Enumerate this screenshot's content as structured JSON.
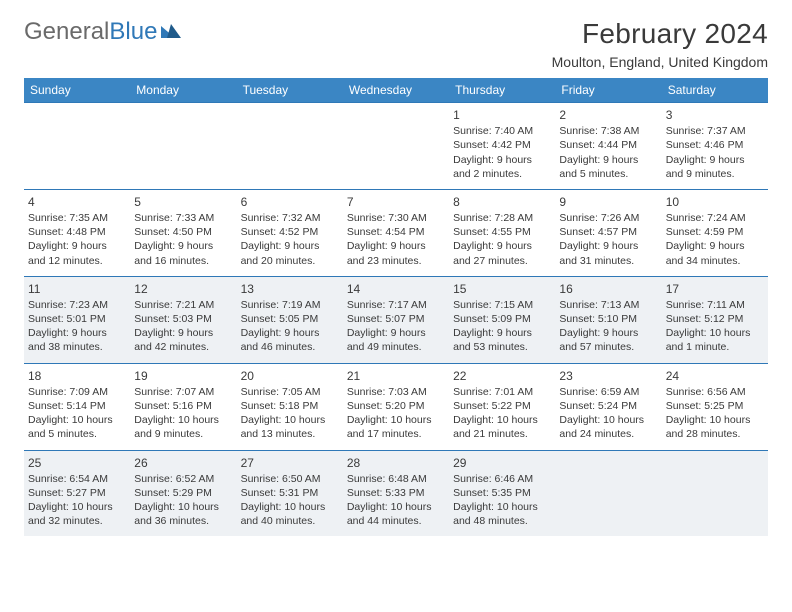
{
  "logo": {
    "part1": "General",
    "part2": "Blue"
  },
  "title": "February 2024",
  "location": "Moulton, England, United Kingdom",
  "colors": {
    "header_bg": "#3b86c4",
    "header_text": "#ffffff",
    "border": "#2f78b7",
    "shaded_row_bg": "#eef1f4",
    "text": "#3a3a3a",
    "logo_gray": "#6a6a6a",
    "logo_blue": "#2f78b7",
    "background": "#ffffff"
  },
  "typography": {
    "title_fontsize": 28,
    "location_fontsize": 14,
    "weekday_fontsize": 12,
    "daynum_fontsize": 12,
    "body_fontsize": 10.5,
    "logo_fontsize": 24
  },
  "weekdays": [
    "Sunday",
    "Monday",
    "Tuesday",
    "Wednesday",
    "Thursday",
    "Friday",
    "Saturday"
  ],
  "weeks": [
    {
      "shaded": false,
      "cells": [
        null,
        null,
        null,
        null,
        {
          "day": "1",
          "sunrise": "Sunrise: 7:40 AM",
          "sunset": "Sunset: 4:42 PM",
          "daylight1": "Daylight: 9 hours",
          "daylight2": "and 2 minutes."
        },
        {
          "day": "2",
          "sunrise": "Sunrise: 7:38 AM",
          "sunset": "Sunset: 4:44 PM",
          "daylight1": "Daylight: 9 hours",
          "daylight2": "and 5 minutes."
        },
        {
          "day": "3",
          "sunrise": "Sunrise: 7:37 AM",
          "sunset": "Sunset: 4:46 PM",
          "daylight1": "Daylight: 9 hours",
          "daylight2": "and 9 minutes."
        }
      ]
    },
    {
      "shaded": false,
      "cells": [
        {
          "day": "4",
          "sunrise": "Sunrise: 7:35 AM",
          "sunset": "Sunset: 4:48 PM",
          "daylight1": "Daylight: 9 hours",
          "daylight2": "and 12 minutes."
        },
        {
          "day": "5",
          "sunrise": "Sunrise: 7:33 AM",
          "sunset": "Sunset: 4:50 PM",
          "daylight1": "Daylight: 9 hours",
          "daylight2": "and 16 minutes."
        },
        {
          "day": "6",
          "sunrise": "Sunrise: 7:32 AM",
          "sunset": "Sunset: 4:52 PM",
          "daylight1": "Daylight: 9 hours",
          "daylight2": "and 20 minutes."
        },
        {
          "day": "7",
          "sunrise": "Sunrise: 7:30 AM",
          "sunset": "Sunset: 4:54 PM",
          "daylight1": "Daylight: 9 hours",
          "daylight2": "and 23 minutes."
        },
        {
          "day": "8",
          "sunrise": "Sunrise: 7:28 AM",
          "sunset": "Sunset: 4:55 PM",
          "daylight1": "Daylight: 9 hours",
          "daylight2": "and 27 minutes."
        },
        {
          "day": "9",
          "sunrise": "Sunrise: 7:26 AM",
          "sunset": "Sunset: 4:57 PM",
          "daylight1": "Daylight: 9 hours",
          "daylight2": "and 31 minutes."
        },
        {
          "day": "10",
          "sunrise": "Sunrise: 7:24 AM",
          "sunset": "Sunset: 4:59 PM",
          "daylight1": "Daylight: 9 hours",
          "daylight2": "and 34 minutes."
        }
      ]
    },
    {
      "shaded": true,
      "cells": [
        {
          "day": "11",
          "sunrise": "Sunrise: 7:23 AM",
          "sunset": "Sunset: 5:01 PM",
          "daylight1": "Daylight: 9 hours",
          "daylight2": "and 38 minutes."
        },
        {
          "day": "12",
          "sunrise": "Sunrise: 7:21 AM",
          "sunset": "Sunset: 5:03 PM",
          "daylight1": "Daylight: 9 hours",
          "daylight2": "and 42 minutes."
        },
        {
          "day": "13",
          "sunrise": "Sunrise: 7:19 AM",
          "sunset": "Sunset: 5:05 PM",
          "daylight1": "Daylight: 9 hours",
          "daylight2": "and 46 minutes."
        },
        {
          "day": "14",
          "sunrise": "Sunrise: 7:17 AM",
          "sunset": "Sunset: 5:07 PM",
          "daylight1": "Daylight: 9 hours",
          "daylight2": "and 49 minutes."
        },
        {
          "day": "15",
          "sunrise": "Sunrise: 7:15 AM",
          "sunset": "Sunset: 5:09 PM",
          "daylight1": "Daylight: 9 hours",
          "daylight2": "and 53 minutes."
        },
        {
          "day": "16",
          "sunrise": "Sunrise: 7:13 AM",
          "sunset": "Sunset: 5:10 PM",
          "daylight1": "Daylight: 9 hours",
          "daylight2": "and 57 minutes."
        },
        {
          "day": "17",
          "sunrise": "Sunrise: 7:11 AM",
          "sunset": "Sunset: 5:12 PM",
          "daylight1": "Daylight: 10 hours",
          "daylight2": "and 1 minute."
        }
      ]
    },
    {
      "shaded": false,
      "cells": [
        {
          "day": "18",
          "sunrise": "Sunrise: 7:09 AM",
          "sunset": "Sunset: 5:14 PM",
          "daylight1": "Daylight: 10 hours",
          "daylight2": "and 5 minutes."
        },
        {
          "day": "19",
          "sunrise": "Sunrise: 7:07 AM",
          "sunset": "Sunset: 5:16 PM",
          "daylight1": "Daylight: 10 hours",
          "daylight2": "and 9 minutes."
        },
        {
          "day": "20",
          "sunrise": "Sunrise: 7:05 AM",
          "sunset": "Sunset: 5:18 PM",
          "daylight1": "Daylight: 10 hours",
          "daylight2": "and 13 minutes."
        },
        {
          "day": "21",
          "sunrise": "Sunrise: 7:03 AM",
          "sunset": "Sunset: 5:20 PM",
          "daylight1": "Daylight: 10 hours",
          "daylight2": "and 17 minutes."
        },
        {
          "day": "22",
          "sunrise": "Sunrise: 7:01 AM",
          "sunset": "Sunset: 5:22 PM",
          "daylight1": "Daylight: 10 hours",
          "daylight2": "and 21 minutes."
        },
        {
          "day": "23",
          "sunrise": "Sunrise: 6:59 AM",
          "sunset": "Sunset: 5:24 PM",
          "daylight1": "Daylight: 10 hours",
          "daylight2": "and 24 minutes."
        },
        {
          "day": "24",
          "sunrise": "Sunrise: 6:56 AM",
          "sunset": "Sunset: 5:25 PM",
          "daylight1": "Daylight: 10 hours",
          "daylight2": "and 28 minutes."
        }
      ]
    },
    {
      "shaded": true,
      "cells": [
        {
          "day": "25",
          "sunrise": "Sunrise: 6:54 AM",
          "sunset": "Sunset: 5:27 PM",
          "daylight1": "Daylight: 10 hours",
          "daylight2": "and 32 minutes."
        },
        {
          "day": "26",
          "sunrise": "Sunrise: 6:52 AM",
          "sunset": "Sunset: 5:29 PM",
          "daylight1": "Daylight: 10 hours",
          "daylight2": "and 36 minutes."
        },
        {
          "day": "27",
          "sunrise": "Sunrise: 6:50 AM",
          "sunset": "Sunset: 5:31 PM",
          "daylight1": "Daylight: 10 hours",
          "daylight2": "and 40 minutes."
        },
        {
          "day": "28",
          "sunrise": "Sunrise: 6:48 AM",
          "sunset": "Sunset: 5:33 PM",
          "daylight1": "Daylight: 10 hours",
          "daylight2": "and 44 minutes."
        },
        {
          "day": "29",
          "sunrise": "Sunrise: 6:46 AM",
          "sunset": "Sunset: 5:35 PM",
          "daylight1": "Daylight: 10 hours",
          "daylight2": "and 48 minutes."
        },
        null,
        null
      ]
    }
  ]
}
